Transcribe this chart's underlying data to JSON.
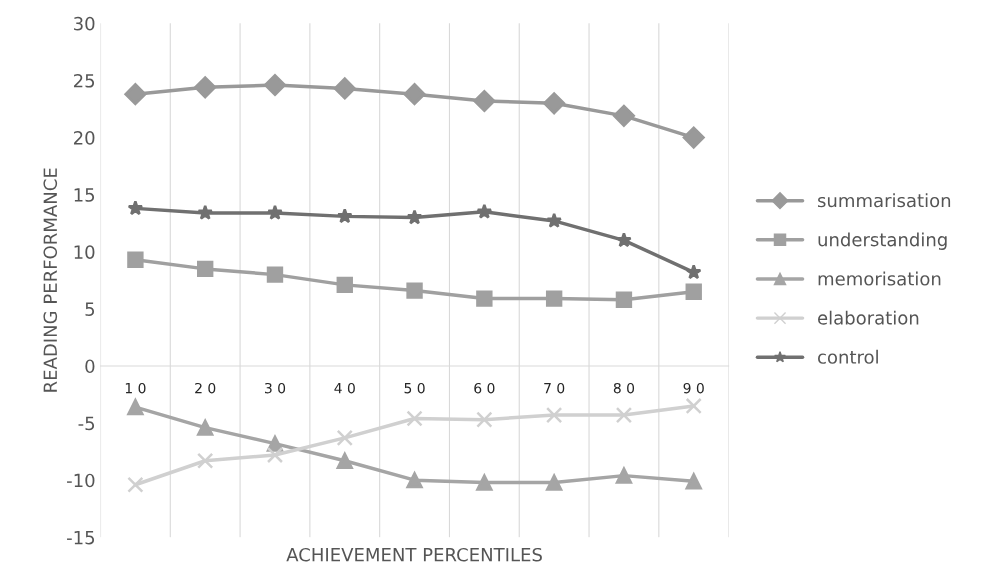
{
  "chart_data": {
    "type": "line",
    "xlabel": "ACHIEVEMENT PERCENTILES",
    "ylabel": "READING PERFORMANCE",
    "categories": [
      "1 0",
      "2 0",
      "3 0",
      "4 0",
      "5 0",
      "6 0",
      "7 0",
      "8 0",
      "9 0"
    ],
    "series": [
      {
        "name": "summarisation",
        "color": "#999999",
        "marker": "diamond",
        "values": [
          23.8,
          24.4,
          24.6,
          24.3,
          23.8,
          23.2,
          23.0,
          21.9,
          20.0
        ]
      },
      {
        "name": "understanding",
        "color": "#a0a0a0",
        "marker": "square",
        "values": [
          9.3,
          8.5,
          8.0,
          7.1,
          6.6,
          5.9,
          5.9,
          5.8,
          6.5
        ]
      },
      {
        "name": "memorisation",
        "color": "#a5a5a5",
        "marker": "triangle",
        "values": [
          -3.6,
          -5.4,
          -6.8,
          -8.3,
          -10.0,
          -10.2,
          -10.2,
          -9.6,
          -10.1
        ]
      },
      {
        "name": "elaboration",
        "color": "#d0d0d0",
        "marker": "cross",
        "values": [
          -10.4,
          -8.3,
          -7.8,
          -6.3,
          -4.6,
          -4.7,
          -4.3,
          -4.3,
          -3.5
        ]
      },
      {
        "name": "control",
        "color": "#707070",
        "marker": "star",
        "values": [
          13.8,
          13.4,
          13.4,
          13.1,
          13.0,
          13.5,
          12.7,
          11.0,
          8.2
        ]
      }
    ],
    "ylim": [
      -15,
      30
    ],
    "yticks": [
      -15,
      -10,
      -5,
      0,
      5,
      10,
      15,
      20,
      25,
      30
    ],
    "grid": "x",
    "legend": "right",
    "line_style": "solid"
  }
}
